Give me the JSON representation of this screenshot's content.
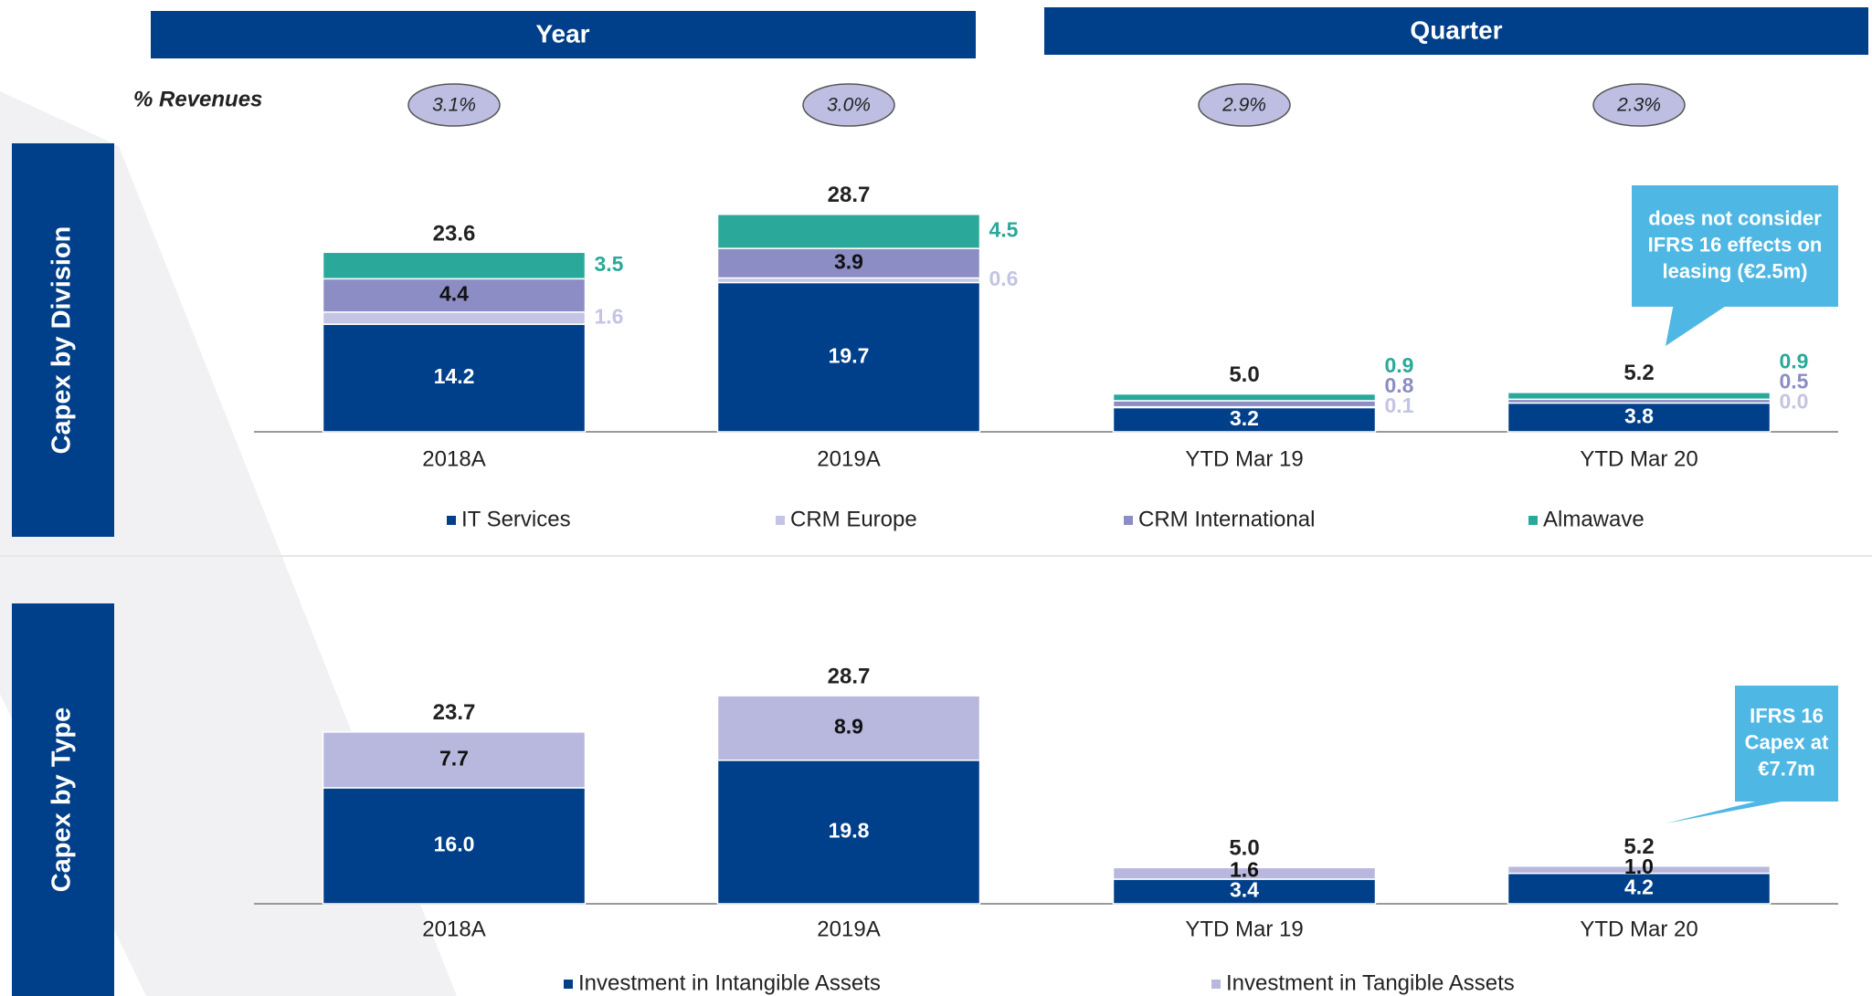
{
  "headers": [
    "Year",
    "Quarter"
  ],
  "revenues": {
    "label": "% Revenues",
    "values": [
      3.1,
      3.0,
      2.9,
      2.3
    ],
    "value_labels": [
      "3.1%",
      "3.0%",
      "2.9%",
      "2.3%"
    ]
  },
  "chart_data": [
    {
      "type": "bar",
      "stacked": true,
      "title": "Capex by Division",
      "categories": [
        "2018A",
        "2019A",
        "YTD Mar 19",
        "YTD Mar 20"
      ],
      "series": [
        {
          "name": "IT Services",
          "color": "#003f8a",
          "values": [
            14.2,
            19.7,
            3.2,
            3.8
          ],
          "value_labels": [
            "14.2",
            "19.7",
            "3.2",
            "3.8"
          ]
        },
        {
          "name": "CRM Europe",
          "color": "#c4c4e4",
          "values": [
            1.6,
            0.6,
            0.1,
            0.0
          ],
          "value_labels": [
            "1.6",
            "0.6",
            "0.1",
            "0.0"
          ]
        },
        {
          "name": "CRM International",
          "color": "#8c8dc5",
          "values": [
            4.4,
            3.9,
            0.8,
            0.5
          ],
          "value_labels": [
            "4.4",
            "3.9",
            "0.8",
            "0.5"
          ]
        },
        {
          "name": "Almawave",
          "color": "#2aa99a",
          "values": [
            3.5,
            4.5,
            0.9,
            0.9
          ],
          "value_labels": [
            "3.5",
            "4.5",
            "0.9",
            "0.9"
          ]
        }
      ],
      "totals": [
        23.6,
        28.7,
        5.0,
        5.2
      ],
      "total_labels": [
        "23.6",
        "28.7",
        "5.0",
        "5.2"
      ],
      "annotation": [
        "does not consider",
        "IFRS 16 effects on",
        "leasing (€2.5m)"
      ]
    },
    {
      "type": "bar",
      "stacked": true,
      "title": "Capex by Type",
      "categories": [
        "2018A",
        "2019A",
        "YTD Mar 19",
        "YTD Mar 20"
      ],
      "series": [
        {
          "name": "Investment in Intangible Assets",
          "color": "#003f8a",
          "values": [
            16.0,
            19.8,
            3.4,
            4.2
          ],
          "value_labels": [
            "16.0",
            "19.8",
            "3.4",
            "4.2"
          ]
        },
        {
          "name": "Investment in Tangible Assets",
          "color": "#b8b8de",
          "values": [
            7.7,
            8.9,
            1.6,
            1.0
          ],
          "value_labels": [
            "7.7",
            "8.9",
            "1.6",
            "1.0"
          ]
        }
      ],
      "totals": [
        23.7,
        28.7,
        5.0,
        5.2
      ],
      "total_labels": [
        "23.7",
        "28.7",
        "5.0",
        "5.2"
      ],
      "annotation": [
        "IFRS 16",
        "Capex at",
        "€7.7m"
      ]
    }
  ]
}
